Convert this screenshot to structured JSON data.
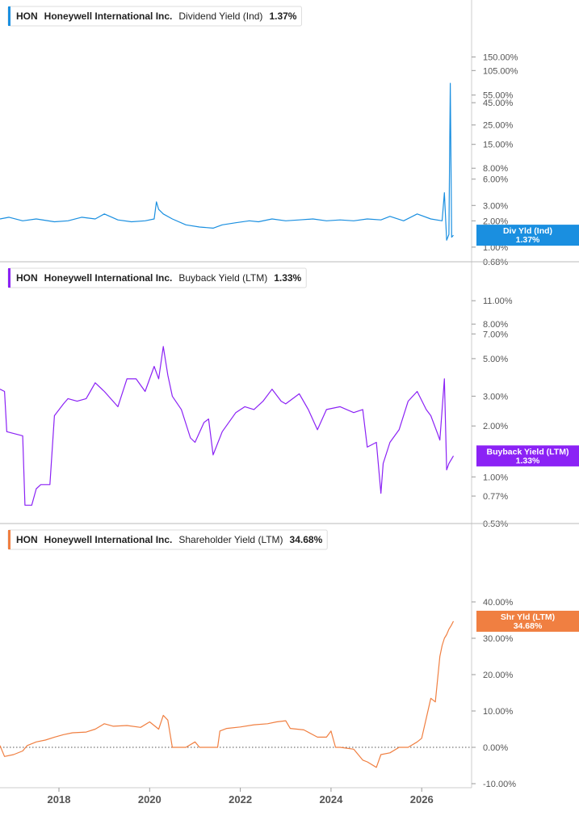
{
  "chart_data": [
    {
      "type": "line",
      "ticker": "HON",
      "company": "Honeywell International Inc.",
      "metric": "Dividend Yield (Ind)",
      "current_value": "1.37%",
      "color": "#1a8fe0",
      "tag_lines": [
        "Div Yld (Ind)",
        "1.37%"
      ],
      "scale": "log",
      "y_ticks": [
        "150.00%",
        "105.00%",
        "55.00%",
        "45.00%",
        "25.00%",
        "15.00%",
        "8.00%",
        "6.00%",
        "3.00%",
        "2.00%",
        "1.00%",
        "0.68%"
      ],
      "y_tick_values": [
        150,
        105,
        55,
        45,
        25,
        15,
        8,
        6,
        3,
        2,
        1,
        0.68
      ],
      "ylim": [
        0.68,
        300
      ],
      "series": [
        {
          "x": [
            2016.7,
            2016.9,
            2017.2,
            2017.5,
            2017.9,
            2018.2,
            2018.5,
            2018.8,
            2019.0,
            2019.3,
            2019.6,
            2019.9,
            2020.1,
            2020.15,
            2020.2,
            2020.3,
            2020.5,
            2020.8,
            2021.1,
            2021.4,
            2021.6,
            2021.9,
            2022.2,
            2022.4,
            2022.7,
            2023.0,
            2023.3,
            2023.6,
            2023.9,
            2024.2,
            2024.5,
            2024.8,
            2025.1,
            2025.3,
            2025.6,
            2025.9,
            2026.2,
            2026.45,
            2026.5,
            2026.55,
            2026.6,
            2026.63,
            2026.66,
            2026.7
          ],
          "y": [
            2.1,
            2.2,
            2.0,
            2.1,
            1.95,
            2.0,
            2.2,
            2.1,
            2.4,
            2.05,
            1.95,
            2.0,
            2.1,
            3.3,
            2.7,
            2.4,
            2.1,
            1.8,
            1.7,
            1.65,
            1.8,
            1.9,
            2.0,
            1.95,
            2.1,
            2.0,
            2.05,
            2.1,
            2.0,
            2.05,
            2.0,
            2.1,
            2.05,
            2.25,
            2.0,
            2.4,
            2.1,
            2.0,
            4.2,
            1.2,
            1.4,
            75.0,
            1.3,
            1.37
          ]
        }
      ]
    },
    {
      "type": "line",
      "ticker": "HON",
      "company": "Honeywell International Inc.",
      "metric": "Buyback Yield (LTM)",
      "current_value": "1.33%",
      "color": "#8b22f5",
      "tag_lines": [
        "Buyback Yield (LTM)",
        "1.33%"
      ],
      "scale": "log",
      "y_ticks": [
        "11.00%",
        "8.00%",
        "7.00%",
        "5.00%",
        "3.00%",
        "2.00%",
        "1.00%",
        "0.77%",
        "0.53%"
      ],
      "y_tick_values": [
        11,
        8,
        7,
        5,
        3,
        2,
        1,
        0.77,
        0.53
      ],
      "ylim": [
        0.53,
        15
      ],
      "series": [
        {
          "x": [
            2016.7,
            2016.8,
            2016.85,
            2017.2,
            2017.25,
            2017.4,
            2017.5,
            2017.6,
            2017.8,
            2017.9,
            2018.1,
            2018.2,
            2018.4,
            2018.6,
            2018.8,
            2019.0,
            2019.3,
            2019.5,
            2019.7,
            2019.9,
            2020.1,
            2020.2,
            2020.3,
            2020.4,
            2020.5,
            2020.7,
            2020.9,
            2021.0,
            2021.2,
            2021.3,
            2021.4,
            2021.6,
            2021.9,
            2022.1,
            2022.3,
            2022.5,
            2022.7,
            2022.9,
            2023.0,
            2023.3,
            2023.5,
            2023.7,
            2023.9,
            2024.2,
            2024.5,
            2024.7,
            2024.8,
            2025.0,
            2025.1,
            2025.15,
            2025.3,
            2025.5,
            2025.7,
            2025.9,
            2026.1,
            2026.2,
            2026.35,
            2026.4,
            2026.5,
            2026.55,
            2026.6,
            2026.7
          ],
          "y": [
            3.3,
            3.2,
            1.85,
            1.75,
            0.68,
            0.68,
            0.85,
            0.9,
            0.9,
            2.3,
            2.7,
            2.9,
            2.8,
            2.9,
            3.6,
            3.2,
            2.6,
            3.8,
            3.8,
            3.2,
            4.5,
            3.8,
            5.9,
            4.0,
            3.0,
            2.5,
            1.7,
            1.6,
            2.1,
            2.2,
            1.35,
            1.85,
            2.4,
            2.6,
            2.5,
            2.8,
            3.3,
            2.8,
            2.7,
            3.1,
            2.5,
            1.9,
            2.5,
            2.6,
            2.4,
            2.5,
            1.5,
            1.6,
            0.8,
            1.2,
            1.6,
            1.9,
            2.8,
            3.2,
            2.5,
            2.3,
            1.8,
            1.65,
            3.8,
            1.1,
            1.2,
            1.33
          ]
        }
      ]
    },
    {
      "type": "line",
      "ticker": "HON",
      "company": "Honeywell International Inc.",
      "metric": "Shareholder Yield (LTM)",
      "current_value": "34.68%",
      "color": "#f07f41",
      "tag_lines": [
        "Shr Yld (LTM)",
        "34.68%"
      ],
      "scale": "linear",
      "y_ticks": [
        "40.00%",
        "30.00%",
        "20.00%",
        "10.00%",
        "0.00%",
        "-10.00%"
      ],
      "y_tick_values": [
        40,
        30,
        20,
        10,
        0,
        -10
      ],
      "ylim": [
        -10,
        50
      ],
      "zero_line": true,
      "series": [
        {
          "x": [
            2016.7,
            2016.8,
            2017.0,
            2017.2,
            2017.3,
            2017.5,
            2017.7,
            2017.9,
            2018.1,
            2018.3,
            2018.6,
            2018.8,
            2019.0,
            2019.2,
            2019.5,
            2019.8,
            2020.0,
            2020.2,
            2020.3,
            2020.4,
            2020.5,
            2020.8,
            2021.0,
            2021.1,
            2021.3,
            2021.5,
            2021.55,
            2021.7,
            2022.0,
            2022.3,
            2022.6,
            2022.8,
            2023.0,
            2023.1,
            2023.4,
            2023.7,
            2023.9,
            2024.0,
            2024.1,
            2024.2,
            2024.5,
            2024.7,
            2024.8,
            2025.0,
            2025.1,
            2025.3,
            2025.5,
            2025.7,
            2025.9,
            2026.0,
            2026.2,
            2026.3,
            2026.4,
            2026.45,
            2026.5,
            2026.55,
            2026.6,
            2026.65,
            2026.7
          ],
          "y": [
            0.5,
            -2.5,
            -2.0,
            -1.0,
            0.5,
            1.5,
            2.0,
            2.8,
            3.5,
            4.0,
            4.2,
            5.0,
            6.5,
            5.8,
            6.0,
            5.5,
            7.0,
            5.0,
            8.8,
            7.5,
            0.0,
            0.0,
            1.5,
            0.0,
            0.0,
            0.0,
            4.5,
            5.2,
            5.6,
            6.2,
            6.5,
            7.0,
            7.3,
            5.2,
            4.8,
            2.8,
            2.8,
            4.5,
            0.0,
            0.0,
            -0.5,
            -3.5,
            -4.0,
            -5.5,
            -2.0,
            -1.5,
            0.0,
            0.0,
            1.5,
            2.5,
            13.5,
            12.5,
            25.0,
            28.0,
            30.0,
            31.0,
            32.5,
            33.5,
            34.68
          ]
        }
      ]
    }
  ],
  "x_axis": {
    "xlim": [
      2016.7,
      2027.1
    ],
    "ticks": [
      "2018",
      "2020",
      "2022",
      "2024",
      "2026"
    ],
    "tick_values": [
      2018,
      2020,
      2022,
      2024,
      2026
    ]
  }
}
